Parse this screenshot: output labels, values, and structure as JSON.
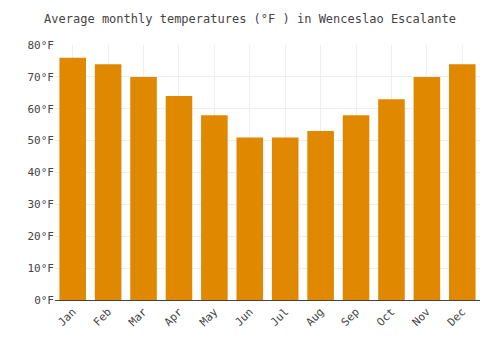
{
  "chart_data": {
    "type": "bar",
    "title": "Average monthly temperatures (°F ) in Wenceslao Escalante",
    "categories": [
      "Jan",
      "Feb",
      "Mar",
      "Apr",
      "May",
      "Jun",
      "Jul",
      "Aug",
      "Sep",
      "Oct",
      "Nov",
      "Dec"
    ],
    "values": [
      76,
      74,
      70,
      64,
      58,
      51,
      51,
      53,
      58,
      63,
      70,
      74
    ],
    "color": "#E08800",
    "ylim": [
      0,
      80
    ],
    "yticks": [
      {
        "value": 0,
        "label": "0°F"
      },
      {
        "value": 10,
        "label": "10°F"
      },
      {
        "value": 20,
        "label": "20°F"
      },
      {
        "value": 30,
        "label": "30°F"
      },
      {
        "value": 40,
        "label": "40°F"
      },
      {
        "value": 50,
        "label": "50°F"
      },
      {
        "value": 60,
        "label": "60°F"
      },
      {
        "value": 70,
        "label": "70°F"
      },
      {
        "value": 80,
        "label": "80°F"
      }
    ],
    "grid": true
  }
}
